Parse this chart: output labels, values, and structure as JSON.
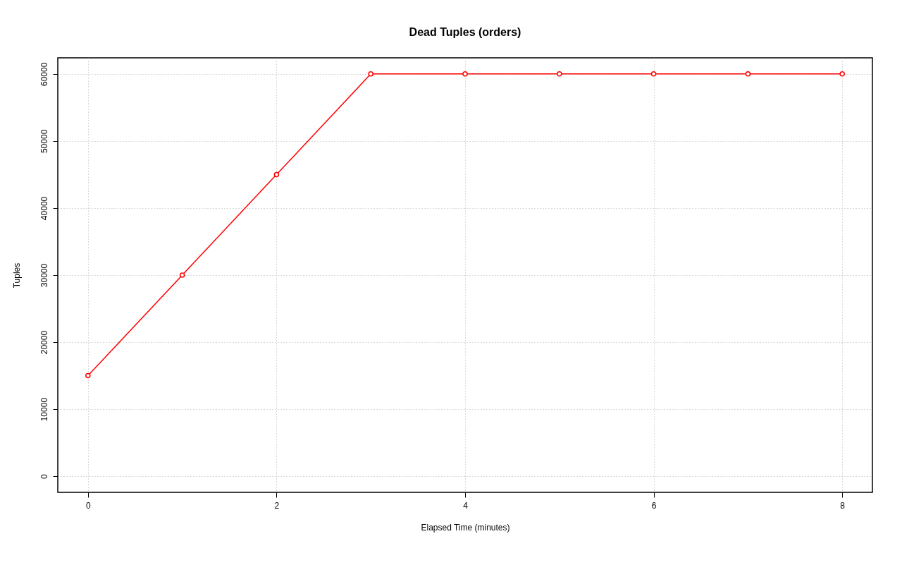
{
  "chart_data": {
    "type": "line",
    "title": "Dead Tuples (orders)",
    "xlabel": "Elapsed Time (minutes)",
    "ylabel": "Tuples",
    "x": [
      0,
      1,
      2,
      3,
      4,
      5,
      6,
      7,
      8
    ],
    "series": [
      {
        "color": "#ff0000",
        "values": [
          15000,
          30000,
          45000,
          60000,
          60000,
          60000,
          60000,
          60000,
          60000
        ]
      }
    ],
    "xlim": [
      -0.32,
      8.32
    ],
    "ylim": [
      -2400,
      62400
    ],
    "xticks": [
      0,
      2,
      4,
      6,
      8
    ],
    "yticks": [
      0,
      10000,
      20000,
      30000,
      40000,
      50000,
      60000
    ],
    "grid": true,
    "marker": "circle",
    "line_style": "solid",
    "legend": false
  }
}
